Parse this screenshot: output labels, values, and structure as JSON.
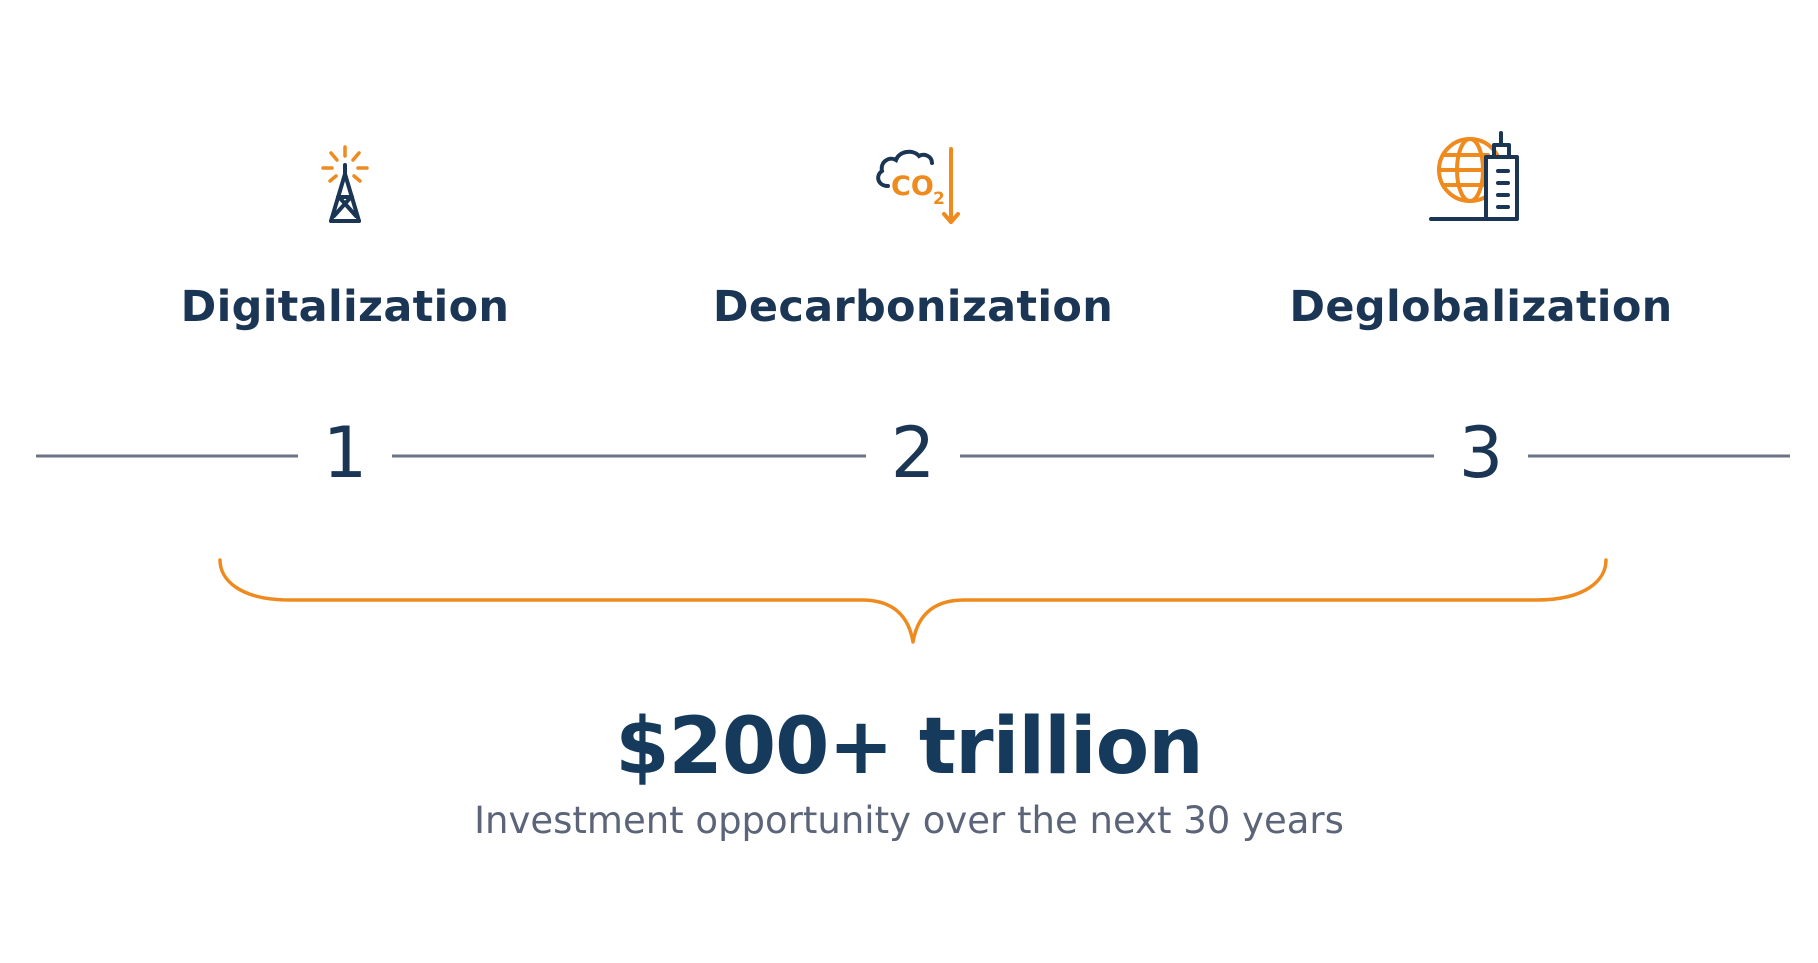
{
  "pillars": [
    {
      "label": "Digitalization",
      "icon": "radio-tower-icon",
      "number": "1"
    },
    {
      "label": "Decarbonization",
      "icon": "co2-reduction-icon",
      "number": "2"
    },
    {
      "label": "Deglobalization",
      "icon": "globe-building-icon",
      "number": "3"
    }
  ],
  "summary": {
    "total": "$200+ trillion",
    "description": "Investment opportunity over the next 30 years"
  },
  "icon_co2_text": "CO",
  "icon_co2_sub": "2",
  "colors": {
    "navy": "#1b3555",
    "orange": "#ee8a1e",
    "line_gray": "#6b7384",
    "subtitle_gray": "#5b6478"
  }
}
